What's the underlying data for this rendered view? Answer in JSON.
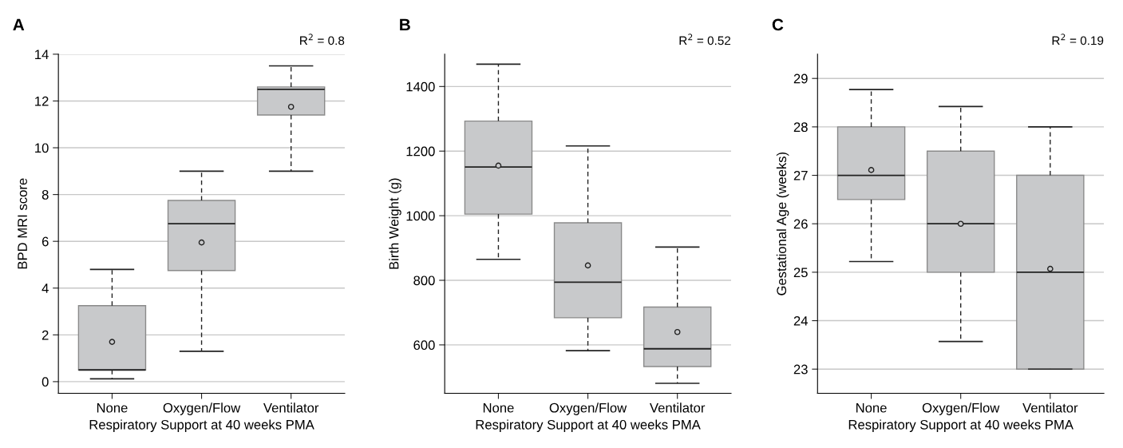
{
  "chart_data": [
    {
      "type": "box",
      "title": "A",
      "xlabel": "Respiratory Support at 40 weeks PMA",
      "ylabel": "BPD MRI score",
      "annotations": [
        "R$^{2}$ = 0.8"
      ],
      "categories": [
        "None",
        "Oxygen/Flow",
        "Ventilator"
      ],
      "ylim": [
        -0.5,
        14
      ],
      "yticks": [
        0,
        2,
        4,
        6,
        8,
        10,
        12,
        14
      ],
      "grid": "y",
      "line_style": "dashed",
      "color": "#c8c9cb",
      "boxes": [
        {
          "low": 0.12,
          "q1": 0.5,
          "median": 0.5,
          "q3": 3.25,
          "high": 4.8,
          "mean": 1.7
        },
        {
          "low": 1.3,
          "q1": 4.75,
          "median": 6.75,
          "q3": 7.75,
          "high": 9.0,
          "mean": 5.95
        },
        {
          "low": 9.0,
          "q1": 11.4,
          "median": 12.5,
          "q3": 12.6,
          "high": 13.5,
          "mean": 11.75
        }
      ]
    },
    {
      "type": "box",
      "title": "B",
      "xlabel": "Respiratory Support at 40 weeks PMA",
      "ylabel": "Birth Weight (g)",
      "annotations": [
        "R$^{2}$ = 0.52"
      ],
      "categories": [
        "None",
        "Oxygen/Flow",
        "Ventilator"
      ],
      "ylim": [
        450,
        1500
      ],
      "yticks": [
        600,
        800,
        1000,
        1200,
        1400
      ],
      "grid": "y",
      "line_style": "dashed",
      "color": "#c8c9cb",
      "boxes": [
        {
          "low": 865,
          "q1": 1005,
          "median": 1151,
          "q3": 1293,
          "high": 1469,
          "mean": 1155
        },
        {
          "low": 582,
          "q1": 684,
          "median": 794,
          "q3": 978,
          "high": 1216,
          "mean": 846
        },
        {
          "low": 481,
          "q1": 533,
          "median": 588,
          "q3": 717,
          "high": 903,
          "mean": 640
        }
      ]
    },
    {
      "type": "box",
      "title": "C",
      "xlabel": "Respiratory Support at 40 weeks PMA",
      "ylabel": "Gestational Age (weeks)",
      "annotations": [
        "R$^{2}$ = 0.19"
      ],
      "categories": [
        "None",
        "Oxygen/Flow",
        "Ventilator"
      ],
      "ylim": [
        22.5,
        29.5
      ],
      "yticks": [
        23,
        24,
        25,
        26,
        27,
        28,
        29
      ],
      "grid": "y",
      "line_style": "dashed",
      "color": "#c8c9cb",
      "boxes": [
        {
          "low": 25.22,
          "q1": 26.5,
          "median": 27.0,
          "q3": 28.0,
          "high": 28.77,
          "mean": 27.11
        },
        {
          "low": 23.57,
          "q1": 25.0,
          "median": 26.0,
          "q3": 27.5,
          "high": 28.42,
          "mean": 26.0
        },
        {
          "low": 23.0,
          "q1": 23.0,
          "median": 25.0,
          "q3": 27.0,
          "high": 28.0,
          "mean": 25.07
        }
      ]
    }
  ]
}
